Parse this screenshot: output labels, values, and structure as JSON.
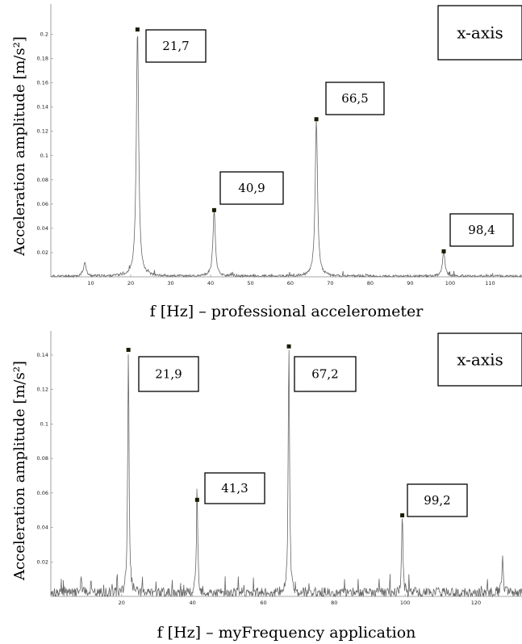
{
  "chart_data": [
    {
      "type": "line",
      "legend_text": "x-axis",
      "xlabel": "f [Hz] – professional accelerometer",
      "ylabel": "Acceleration amplitude [m/s²]",
      "xlim": [
        0,
        118
      ],
      "ylim": [
        0,
        0.225
      ],
      "xticks": [
        10,
        20,
        30,
        40,
        50,
        60,
        70,
        80,
        90,
        100,
        110
      ],
      "yticks": [
        0.02,
        0.04,
        0.06,
        0.08,
        0.1,
        0.12,
        0.14,
        0.16,
        0.18,
        0.2
      ],
      "peaks": [
        {
          "x": 21.7,
          "y": 0.204,
          "label": "21,7"
        },
        {
          "x": 40.9,
          "y": 0.055,
          "label": "40,9"
        },
        {
          "x": 66.5,
          "y": 0.13,
          "label": "66,5"
        },
        {
          "x": 98.4,
          "y": 0.021,
          "label": "98,4"
        }
      ],
      "minor_peaks": [
        {
          "x": 8.5,
          "y": 0.012
        }
      ],
      "noise": 0.001,
      "baseline": 0.0005
    },
    {
      "type": "line",
      "legend_text": "x-axis",
      "xlabel": "f [Hz] – myFrequency application",
      "ylabel": "Acceleration amplitude [m/s²]",
      "xlim": [
        0,
        133
      ],
      "ylim": [
        0,
        0.154
      ],
      "xticks": [
        20,
        40,
        60,
        80,
        100,
        120
      ],
      "yticks": [
        0.02,
        0.04,
        0.06,
        0.08,
        0.1,
        0.12,
        0.14
      ],
      "peaks": [
        {
          "x": 21.9,
          "y": 0.143,
          "label": "21,9"
        },
        {
          "x": 41.3,
          "y": 0.056,
          "label": "41,3"
        },
        {
          "x": 67.2,
          "y": 0.145,
          "label": "67,2"
        },
        {
          "x": 99.2,
          "y": 0.047,
          "label": "99,2"
        }
      ],
      "minor_peaks": [
        {
          "x": 8.5,
          "y": 0.008
        },
        {
          "x": 127.5,
          "y": 0.022
        }
      ],
      "noise": 0.003,
      "baseline": 0.002
    }
  ]
}
